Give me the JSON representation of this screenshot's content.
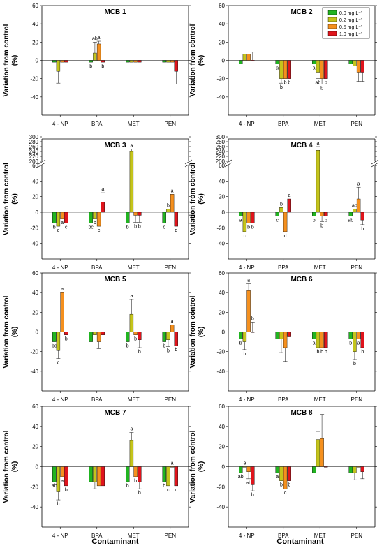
{
  "colors": {
    "0.0 mg L⁻¹": "#21b421",
    "0.2 mg L⁻¹": "#c4c41c",
    "0.5 mg L⁻¹": "#f5901e",
    "1.0 mg L⁻¹": "#e0141c"
  },
  "figure": {
    "ylabel_line1": "Variation from control",
    "ylabel_line2": "(%)",
    "xlabel": "Contaminant",
    "legend": [
      "0.0 mg L⁻¹",
      "0.2 mg L⁻¹",
      "0.5 mg L⁻¹",
      "1.0 mg L⁻¹"
    ]
  },
  "chart_data": [
    {
      "type": "bar",
      "title": "MCB 1",
      "ylim": [
        -60,
        60
      ],
      "yticks": [
        -40,
        -20,
        0,
        20,
        40,
        60
      ],
      "categories": [
        "4 - NP",
        "BPA",
        "MET",
        "PEN"
      ],
      "series": [
        {
          "name": "0.0 mg L⁻¹",
          "values": [
            -2,
            -2,
            -2,
            -2
          ],
          "err": [
            0,
            0,
            0,
            0
          ],
          "labels": [
            "",
            "b",
            "",
            ""
          ]
        },
        {
          "name": "0.2 mg L⁻¹",
          "values": [
            -12,
            8,
            -2,
            -2
          ],
          "err": [
            13,
            12,
            0,
            0
          ],
          "labels": [
            "",
            "ab",
            "",
            ""
          ]
        },
        {
          "name": "0.5 mg L⁻¹",
          "values": [
            -2,
            18,
            -2,
            -2
          ],
          "err": [
            0,
            3,
            0,
            0
          ],
          "labels": [
            "",
            "a",
            "",
            ""
          ]
        },
        {
          "name": "1.0 mg L⁻¹",
          "values": [
            -2,
            -2,
            -2,
            -12
          ],
          "err": [
            0,
            0,
            0,
            14
          ],
          "labels": [
            "",
            "b",
            "",
            ""
          ]
        }
      ]
    },
    {
      "type": "bar",
      "title": "MCB 2",
      "ylim": [
        -60,
        60
      ],
      "yticks": [
        -40,
        -20,
        0,
        20,
        40,
        60
      ],
      "categories": [
        "4 - NP",
        "BPA",
        "MET",
        "PEN"
      ],
      "series": [
        {
          "name": "0.0 mg L⁻¹",
          "values": [
            -4,
            -4,
            -4,
            -4
          ],
          "err": [
            0,
            0,
            0,
            0
          ],
          "labels": [
            "",
            "a",
            "a",
            ""
          ]
        },
        {
          "name": "0.2 mg L⁻¹",
          "values": [
            7,
            -20,
            -13,
            -6
          ],
          "err": [
            0,
            5,
            7,
            0
          ],
          "labels": [
            "",
            "b",
            "ab",
            ""
          ]
        },
        {
          "name": "0.5 mg L⁻¹",
          "values": [
            7,
            -20,
            -20,
            -13
          ],
          "err": [
            0,
            0,
            6,
            10
          ],
          "labels": [
            "",
            "b",
            "b",
            ""
          ]
        },
        {
          "name": "1.0 mg L⁻¹",
          "values": [
            0,
            -20,
            -20,
            -13
          ],
          "err": [
            9,
            0,
            0,
            10
          ],
          "labels": [
            "",
            "b",
            "b",
            ""
          ]
        }
      ]
    },
    {
      "type": "bar",
      "title": "MCB 3",
      "ylim": [
        -60,
        300
      ],
      "broken_axis": [
        60,
        200
      ],
      "yticks": [
        -40,
        -20,
        0,
        20,
        40,
        60,
        200,
        220,
        240,
        260,
        280,
        300
      ],
      "categories": [
        "4 - NP",
        "BPA",
        "MET",
        "PEN"
      ],
      "series": [
        {
          "name": "0.0 mg L⁻¹",
          "values": [
            -14,
            -14,
            -14,
            -14
          ],
          "err": [
            0,
            0,
            0,
            0
          ],
          "labels": [
            "b",
            "bc",
            "b",
            "c"
          ]
        },
        {
          "name": "0.2 mg L⁻¹",
          "values": [
            -18,
            -8,
            240,
            4
          ],
          "err": [
            0,
            0,
            10,
            0
          ],
          "labels": [
            "c",
            "b",
            "a",
            "b"
          ]
        },
        {
          "name": "0.5 mg L⁻¹",
          "values": [
            -8,
            -18,
            -4,
            23
          ],
          "err": [
            0,
            0,
            9,
            0
          ],
          "labels": [
            "a",
            "c",
            "b",
            "a"
          ]
        },
        {
          "name": "1.0 mg L⁻¹",
          "values": [
            -14,
            13,
            -4,
            -18
          ],
          "err": [
            0,
            12,
            9,
            0
          ],
          "labels": [
            "c",
            "a",
            "b",
            "d"
          ]
        }
      ]
    },
    {
      "type": "bar",
      "title": "MCB 4",
      "ylim": [
        -60,
        300
      ],
      "broken_axis": [
        60,
        200
      ],
      "yticks": [
        -40,
        -20,
        0,
        20,
        40,
        60,
        200,
        220,
        240,
        260,
        280,
        300
      ],
      "categories": [
        "4 - NP",
        "BPA",
        "MET",
        "PEN"
      ],
      "series": [
        {
          "name": "0.0 mg L⁻¹",
          "values": [
            -5,
            -5,
            -5,
            -5
          ],
          "err": [
            0,
            0,
            0,
            0
          ],
          "labels": [
            "a",
            "c",
            "b",
            "ab"
          ]
        },
        {
          "name": "0.2 mg L⁻¹",
          "values": [
            -25,
            6,
            245,
            4
          ],
          "err": [
            0,
            0,
            15,
            0
          ],
          "labels": [
            "c",
            "b",
            "a",
            "ab"
          ]
        },
        {
          "name": "0.5 mg L⁻¹",
          "values": [
            -14,
            -25,
            -5,
            17
          ],
          "err": [
            0,
            0,
            7,
            15
          ],
          "labels": [
            "b",
            "d",
            "b",
            "a"
          ]
        },
        {
          "name": "1.0 mg L⁻¹",
          "values": [
            -14,
            17,
            -5,
            -10
          ],
          "err": [
            0,
            0,
            0,
            6
          ],
          "labels": [
            "b",
            "a",
            "b",
            "b"
          ]
        }
      ]
    },
    {
      "type": "bar",
      "title": "MCB 5",
      "ylim": [
        -60,
        60
      ],
      "yticks": [
        -40,
        -20,
        0,
        20,
        40,
        60
      ],
      "categories": [
        "4 - NP",
        "BPA",
        "MET",
        "PEN"
      ],
      "series": [
        {
          "name": "0.0 mg L⁻¹",
          "values": [
            -10,
            -10,
            -10,
            -10
          ],
          "err": [
            0,
            0,
            0,
            0
          ],
          "labels": [
            "bc",
            "",
            "b",
            "b"
          ]
        },
        {
          "name": "0.2 mg L⁻¹",
          "values": [
            -19,
            -3,
            18,
            -8
          ],
          "err": [
            8,
            0,
            15,
            7
          ],
          "labels": [
            "c",
            "",
            "a",
            "b"
          ]
        },
        {
          "name": "0.5 mg L⁻¹",
          "values": [
            40,
            -10,
            -3,
            7
          ],
          "err": [
            0,
            7,
            0,
            0
          ],
          "labels": [
            "a",
            "",
            "b",
            "a"
          ]
        },
        {
          "name": "1.0 mg L⁻¹",
          "values": [
            -3,
            -3,
            -8,
            -14
          ],
          "err": [
            0,
            0,
            8,
            0
          ],
          "labels": [
            "b",
            "",
            "b",
            "b"
          ]
        }
      ]
    },
    {
      "type": "bar",
      "title": "MCB 6",
      "ylim": [
        -60,
        60
      ],
      "yticks": [
        -40,
        -20,
        0,
        20,
        40,
        60
      ],
      "categories": [
        "4 - NP",
        "BPA",
        "MET",
        "PEN"
      ],
      "series": [
        {
          "name": "0.0 mg L⁻¹",
          "values": [
            -7,
            -7,
            -7,
            -7
          ],
          "err": [
            0,
            0,
            0,
            0
          ],
          "labels": [
            "b",
            "",
            "a",
            "b"
          ]
        },
        {
          "name": "0.2 mg L⁻¹",
          "values": [
            -10,
            -7,
            -16,
            -20
          ],
          "err": [
            8,
            14,
            0,
            8
          ],
          "labels": [
            "b",
            "",
            "b",
            "b"
          ]
        },
        {
          "name": "0.5 mg L⁻¹",
          "values": [
            42,
            -16,
            -16,
            -7
          ],
          "err": [
            7,
            14,
            0,
            0
          ],
          "labels": [
            "a",
            "",
            "b",
            "a"
          ]
        },
        {
          "name": "1.0 mg L⁻¹",
          "values": [
            0,
            -5,
            -16,
            -16
          ],
          "err": [
            10,
            0,
            0,
            0
          ],
          "labels": [
            "b",
            "",
            "b",
            "b"
          ]
        }
      ]
    },
    {
      "type": "bar",
      "title": "MCB 7",
      "ylim": [
        -60,
        60
      ],
      "yticks": [
        -40,
        -20,
        0,
        20,
        40,
        60
      ],
      "categories": [
        "4 - NP",
        "BPA",
        "MET",
        "PEN"
      ],
      "series": [
        {
          "name": "0.0 mg L⁻¹",
          "values": [
            -15,
            -15,
            -15,
            -15
          ],
          "err": [
            0,
            0,
            0,
            0
          ],
          "labels": [
            "ab",
            "",
            "b",
            "b"
          ]
        },
        {
          "name": "0.2 mg L⁻¹",
          "values": [
            -25,
            -15,
            26,
            -19
          ],
          "err": [
            8,
            7,
            8,
            0
          ],
          "labels": [
            "b",
            "",
            "a",
            "c"
          ]
        },
        {
          "name": "0.5 mg L⁻¹",
          "values": [
            -10,
            -19,
            -10,
            0
          ],
          "err": [
            0,
            0,
            0,
            0
          ],
          "labels": [
            "a",
            "",
            "b",
            "a"
          ]
        },
        {
          "name": "1.0 mg L⁻¹",
          "values": [
            -19,
            -19,
            -15,
            -19
          ],
          "err": [
            0,
            0,
            7,
            0
          ],
          "labels": [
            "b",
            "",
            "b",
            "c"
          ]
        }
      ]
    },
    {
      "type": "bar",
      "title": "MCB 8",
      "ylim": [
        -60,
        60
      ],
      "yticks": [
        -40,
        -20,
        0,
        20,
        40,
        60
      ],
      "categories": [
        "4 - NP",
        "BPA",
        "MET",
        "PEN"
      ],
      "series": [
        {
          "name": "0.0 mg L⁻¹",
          "values": [
            -6,
            -6,
            -6,
            -6
          ],
          "err": [
            0,
            0,
            0,
            0
          ],
          "labels": [
            "ab",
            "a",
            "",
            ""
          ]
        },
        {
          "name": "0.2 mg L⁻¹",
          "values": [
            0,
            -14,
            27,
            -6
          ],
          "err": [
            0,
            0,
            8,
            7
          ],
          "labels": [
            "a",
            "b",
            "",
            ""
          ]
        },
        {
          "name": "0.5 mg L⁻¹",
          "values": [
            -5,
            -22,
            28,
            0
          ],
          "err": [
            7,
            0,
            24,
            0
          ],
          "labels": [
            "ab",
            "c",
            "",
            ""
          ]
        },
        {
          "name": "1.0 mg L⁻¹",
          "values": [
            -18,
            -14,
            0,
            -5
          ],
          "err": [
            6,
            0,
            0,
            7
          ],
          "labels": [
            "b",
            "b",
            "",
            ""
          ]
        }
      ]
    }
  ]
}
